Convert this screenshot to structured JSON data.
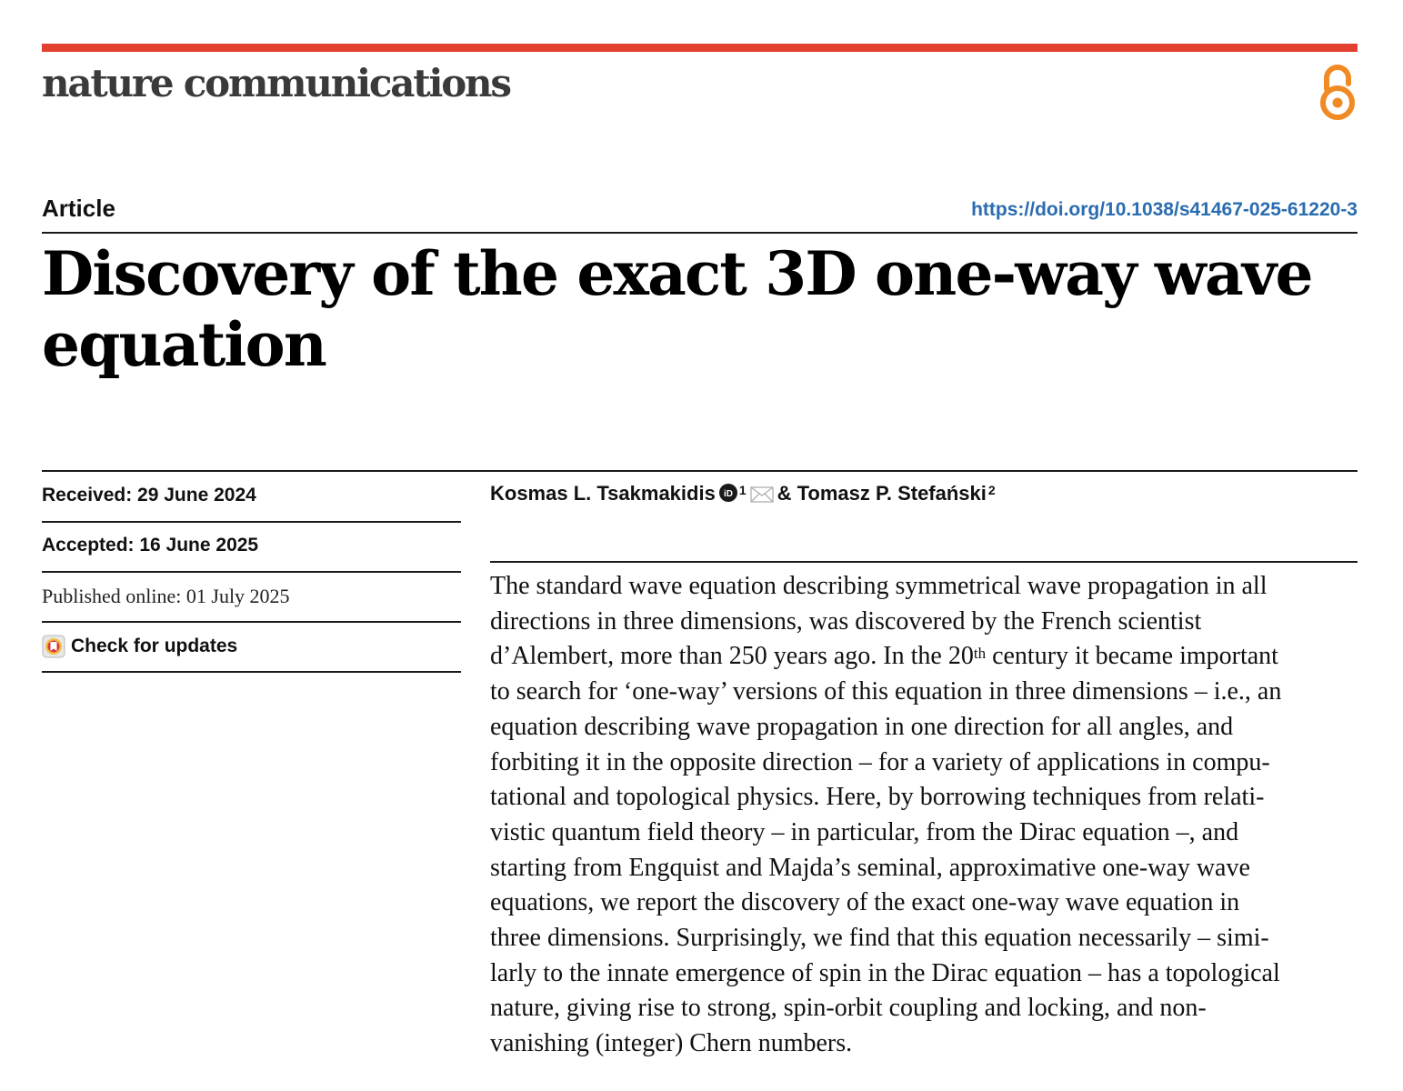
{
  "journal": {
    "name": "nature communications",
    "accent_color": "#e3402f",
    "open_access_icon": "open-access-icon",
    "open_access_color": "#f08a24"
  },
  "article": {
    "type": "Article",
    "doi": "https://doi.org/10.1038/s41467-025-61220-3",
    "title": "Discovery of the exact 3D one-way wave equation"
  },
  "dates": {
    "received": "Received: 29 June 2024",
    "accepted": "Accepted: 16 June 2025",
    "published": "Published online: 01 July 2025"
  },
  "check_updates": {
    "label": "Check for updates",
    "icon": "check-for-updates-icon"
  },
  "authors": [
    {
      "name": "Kosmas L. Tsakmakidis",
      "affiliation": "1",
      "orcid_icon": "orcid-icon",
      "mail_icon": "mail-icon"
    },
    {
      "name": "Tomasz P. Stefański",
      "affiliation": "2"
    }
  ],
  "authors_joiner": "&",
  "abstract": {
    "lines": [
      "The standard wave equation describing symmetrical wave propagation in all",
      "directions in three dimensions, was discovered by the French scientist",
      "d’Alembert, more than 250 years ago. In the 20",
      "th",
      " century it became important",
      "to search for ‘one-way’ versions of this equation in three dimensions – i.e., an",
      "equation describing wave propagation in one direction for all angles, and",
      "forbiting it in the opposite direction – for a variety of applications in compu-",
      "tational and topological physics. Here, by borrowing techniques from relati-",
      "vistic quantum field theory – in particular, from the Dirac equation –, and",
      "starting from Engquist and Majda’s seminal, approximative one-way wave",
      "equations, we report the discovery of the exact one-way wave equation in",
      "three dimensions. Surprisingly, we find that this equation necessarily – simi-",
      "larly to the innate emergence of spin in the Dirac equation – has a topological",
      "nature, giving rise to strong, spin-orbit coupling and locking, and non-",
      "vanishing (integer) Chern numbers."
    ]
  }
}
